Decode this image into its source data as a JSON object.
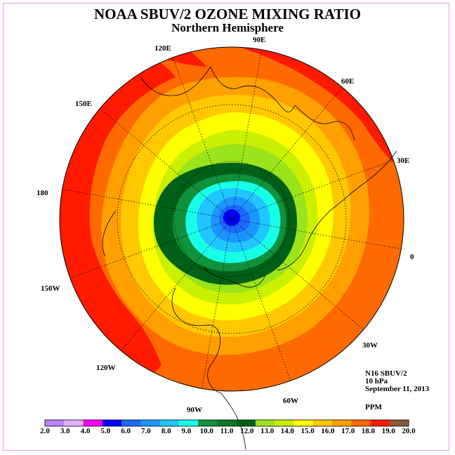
{
  "title": "NOAA SBUV/2 OZONE MIXING RATIO",
  "subtitle": "Northern Hemisphere",
  "longitude_labels": [
    "0",
    "30E",
    "60E",
    "90E",
    "120E",
    "150E",
    "180",
    "150W",
    "120W",
    "90W",
    "60W",
    "30W"
  ],
  "info": {
    "instrument": "N16 SBUV/2",
    "level": "10 hPa",
    "date": "September 11, 2013"
  },
  "units": "PPM",
  "colorbar": {
    "ticks": [
      "2.0",
      "3.0",
      "4.0",
      "5.0",
      "6.0",
      "7.0",
      "8.0",
      "9.0",
      "10.0",
      "11.0",
      "12.0",
      "13.0",
      "14.0",
      "15.0",
      "16.0",
      "17.0",
      "18.0",
      "19.0",
      "20.0"
    ],
    "colors": [
      "#bf80ff",
      "#e0b0ff",
      "#ff00ff",
      "#0000ff",
      "#1a6aff",
      "#1b96ff",
      "#1fc6ff",
      "#18ffe8",
      "#10913c",
      "#0a7a28",
      "#006018",
      "#9be31a",
      "#c8f000",
      "#ffff00",
      "#ffc800",
      "#ffa000",
      "#ff6a00",
      "#ff1a00",
      "#8a5a3c"
    ]
  }
}
